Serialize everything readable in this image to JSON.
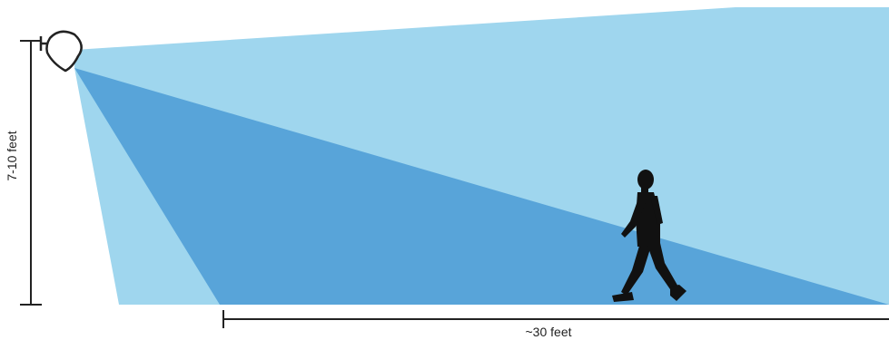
{
  "diagram": {
    "height_label": "7-10 feet",
    "distance_label": "~30 feet",
    "colors": {
      "outer_beam": "#9fd6ee",
      "inner_beam": "#58a4d9",
      "dimension_line": "#222222",
      "silhouette": "#111111",
      "light_outline": "#222222",
      "light_fill": "#ffffff"
    },
    "icons": {
      "light_fixture": "floodlight-icon",
      "person": "walking-person-icon"
    }
  }
}
